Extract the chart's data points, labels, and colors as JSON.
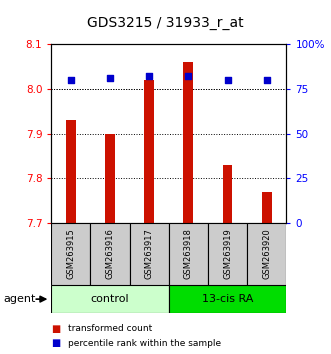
{
  "title": "GDS3215 / 31933_r_at",
  "samples": [
    "GSM263915",
    "GSM263916",
    "GSM263917",
    "GSM263918",
    "GSM263919",
    "GSM263920"
  ],
  "bar_values": [
    7.93,
    7.9,
    8.02,
    8.06,
    7.83,
    7.77
  ],
  "bar_bottom": 7.7,
  "percentile_values": [
    80,
    81,
    82,
    82,
    80,
    80
  ],
  "ylim_left": [
    7.7,
    8.1
  ],
  "ylim_right": [
    0,
    100
  ],
  "yticks_left": [
    7.7,
    7.8,
    7.9,
    8.0,
    8.1
  ],
  "yticks_right": [
    0,
    25,
    50,
    75,
    100
  ],
  "ytick_labels_right": [
    "0",
    "25",
    "50",
    "75",
    "100%"
  ],
  "bar_color": "#cc1100",
  "point_color": "#0000cc",
  "groups": [
    {
      "label": "control",
      "start": 0,
      "end": 3,
      "color": "#ccffcc"
    },
    {
      "label": "13-cis RA",
      "start": 3,
      "end": 6,
      "color": "#00dd00"
    }
  ],
  "group_label_row": "agent",
  "legend_items": [
    {
      "color": "#cc1100",
      "label": "transformed count"
    },
    {
      "color": "#0000cc",
      "label": "percentile rank within the sample"
    }
  ],
  "sample_box_color": "#cccccc",
  "background_color": "#ffffff"
}
